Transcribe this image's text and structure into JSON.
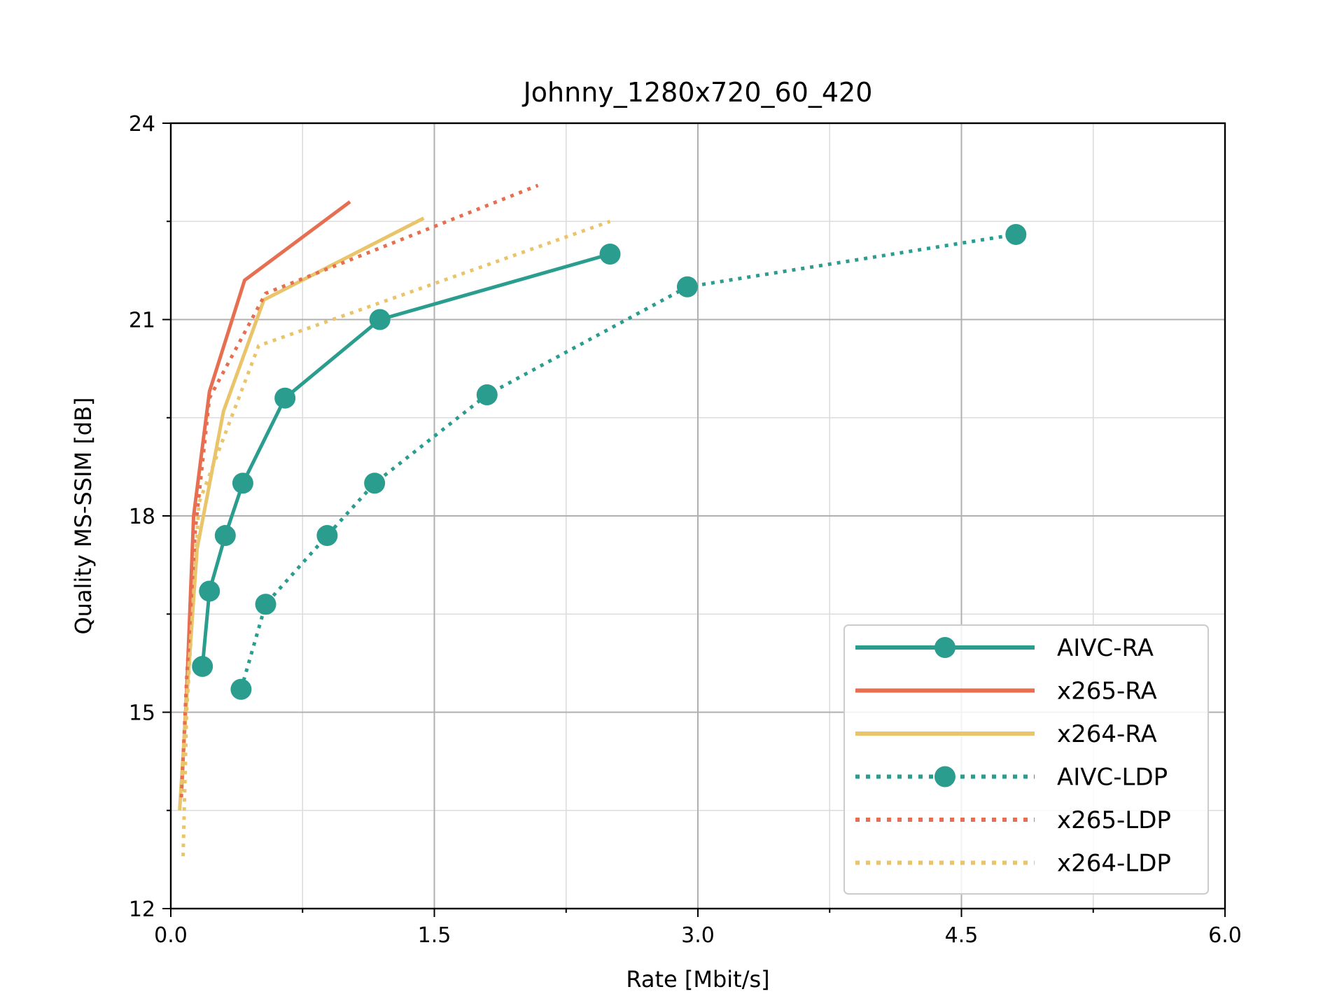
{
  "chart_data": {
    "type": "line",
    "title": "Johnny_1280x720_60_420",
    "xlabel": "Rate [Mbit/s]",
    "ylabel": "Quality MS-SSIM [dB]",
    "xlim": [
      0.0,
      6.0
    ],
    "ylim": [
      12,
      24
    ],
    "xticks": [
      0.0,
      1.5,
      3.0,
      4.5,
      6.0
    ],
    "xtick_labels": [
      "0.0",
      "1.5",
      "3.0",
      "4.5",
      "6.0"
    ],
    "xminor": [
      0.75,
      2.25,
      3.75,
      5.25
    ],
    "yticks": [
      12,
      15,
      18,
      21,
      24
    ],
    "ytick_labels": [
      "12",
      "15",
      "18",
      "21",
      "24"
    ],
    "yminor": [
      13.5,
      16.5,
      19.5,
      22.5
    ],
    "grid": true,
    "legend_position": "lower-right",
    "series": [
      {
        "name": "AIVC-RA",
        "color": "#2a9d8f",
        "style": "solid",
        "marker": "circle",
        "x": [
          0.18,
          0.22,
          0.31,
          0.41,
          0.65,
          1.19,
          2.5
        ],
        "y": [
          15.7,
          16.85,
          17.7,
          18.5,
          19.8,
          21.0,
          22.0
        ]
      },
      {
        "name": "x265-RA",
        "color": "#e76f51",
        "style": "solid",
        "marker": "none",
        "x": [
          0.06,
          0.09,
          0.13,
          0.22,
          0.42,
          1.02
        ],
        "y": [
          13.8,
          15.3,
          18.0,
          19.9,
          21.6,
          22.8
        ]
      },
      {
        "name": "x264-RA",
        "color": "#e9c46a",
        "style": "solid",
        "marker": "none",
        "x": [
          0.05,
          0.09,
          0.15,
          0.3,
          0.53,
          1.44
        ],
        "y": [
          13.5,
          15.2,
          17.5,
          19.6,
          21.3,
          22.55
        ]
      },
      {
        "name": "AIVC-LDP",
        "color": "#2a9d8f",
        "style": "dotted",
        "marker": "circle",
        "x": [
          0.4,
          0.54,
          0.89,
          1.16,
          1.8,
          2.94,
          4.81
        ],
        "y": [
          15.35,
          16.65,
          17.7,
          18.5,
          19.85,
          21.5,
          22.3
        ]
      },
      {
        "name": "x265-LDP",
        "color": "#e76f51",
        "style": "dotted",
        "marker": "none",
        "x": [
          0.06,
          0.09,
          0.14,
          0.22,
          0.54,
          2.09
        ],
        "y": [
          13.7,
          15.5,
          17.8,
          19.8,
          21.4,
          23.05
        ]
      },
      {
        "name": "x264-LDP",
        "color": "#e9c46a",
        "style": "dotted",
        "marker": "none",
        "x": [
          0.07,
          0.09,
          0.16,
          0.5,
          2.5
        ],
        "y": [
          12.8,
          15.0,
          18.2,
          20.6,
          22.5
        ]
      }
    ]
  }
}
